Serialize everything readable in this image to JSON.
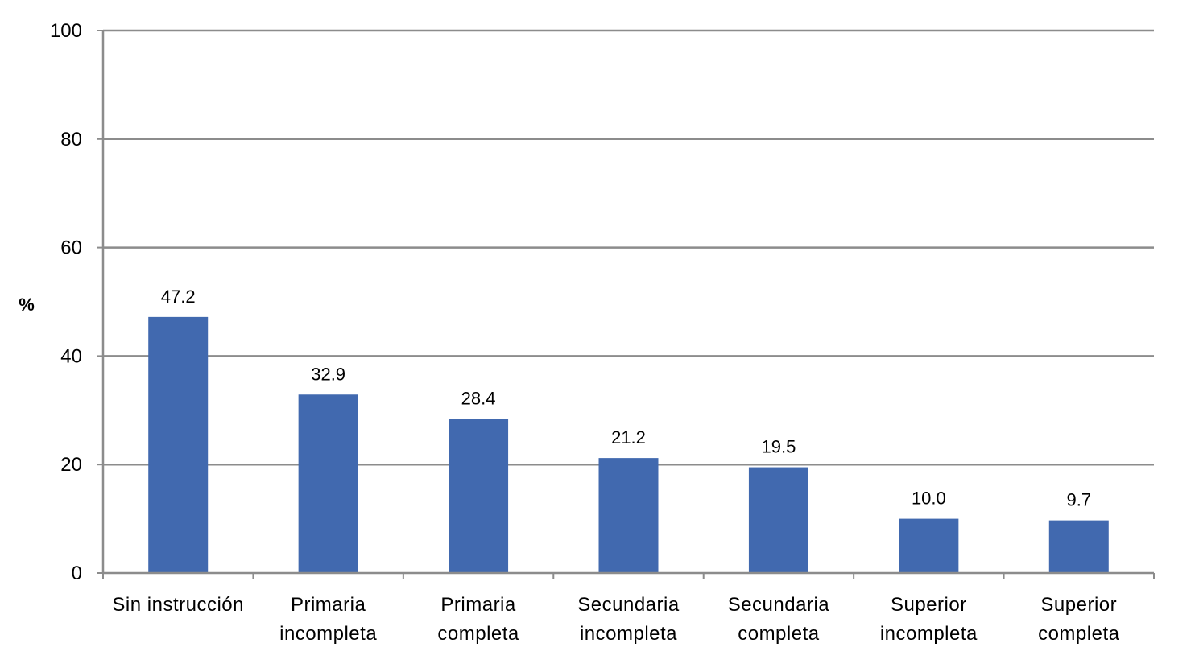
{
  "chart_data": {
    "type": "bar",
    "title": "",
    "xlabel": "",
    "ylabel": "%",
    "ylim": [
      0,
      100
    ],
    "yticks": [
      0,
      20,
      40,
      60,
      80,
      100
    ],
    "grid": true,
    "legend": "none",
    "bar_color": "#4169AF",
    "categories": [
      [
        "Sin instrucción"
      ],
      [
        "Primaria",
        "incompleta"
      ],
      [
        "Primaria",
        "completa"
      ],
      [
        "Secundaria",
        "incompleta"
      ],
      [
        "Secundaria",
        "completa"
      ],
      [
        "Superior",
        "incompleta"
      ],
      [
        "Superior",
        "completa"
      ]
    ],
    "values": [
      47.2,
      32.9,
      28.4,
      21.2,
      19.5,
      10.0,
      9.7
    ],
    "value_labels": [
      "47.2",
      "32.9",
      "28.4",
      "21.2",
      "19.5",
      "10.0",
      "9.7"
    ]
  }
}
